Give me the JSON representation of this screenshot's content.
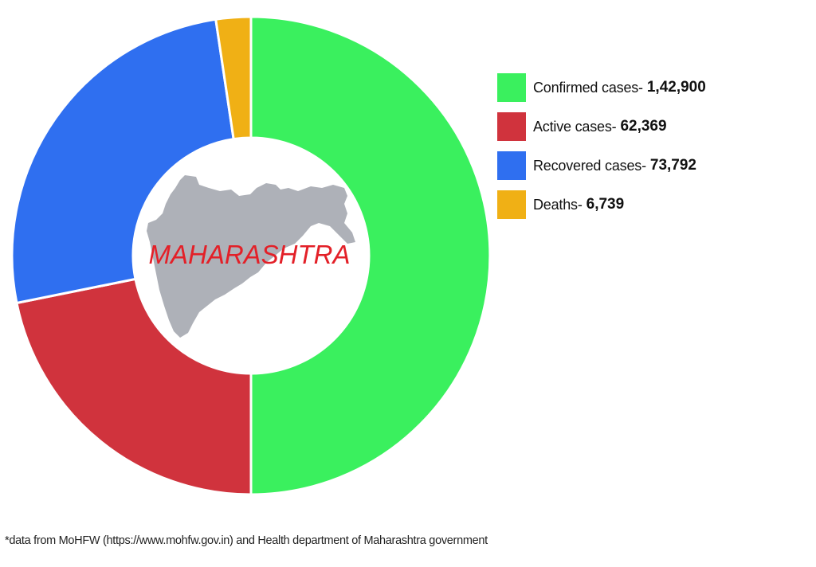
{
  "chart_data": {
    "type": "pie",
    "subtype": "donut",
    "title": "",
    "center_label": "MAHARASHTRA",
    "categories": [
      "Confirmed cases",
      "Active cases",
      "Recovered cases",
      "Deaths"
    ],
    "values": [
      142900,
      62369,
      73792,
      6739
    ],
    "colors": [
      "#3af05e",
      "#d0333d",
      "#2f6ff0",
      "#f0b015"
    ],
    "start_angle_deg": 0,
    "direction": "clockwise",
    "legend_position": "right"
  },
  "legend": {
    "items": [
      {
        "label": "Confirmed cases-",
        "value": "1,42,900",
        "color": "#3af05e"
      },
      {
        "label": "Active cases-",
        "value": "62,369",
        "color": "#d0333d"
      },
      {
        "label": "Recovered cases-",
        "value": "73,792",
        "color": "#2f6ff0"
      },
      {
        "label": "Deaths-",
        "value": "6,739",
        "color": "#f0b015"
      }
    ]
  },
  "center": {
    "label": "MAHARASHTRA",
    "map_color": "#aeb1b8",
    "label_color": "#e32028"
  },
  "footnote": "*data from MoHFW (https://www.mohfw.gov.in) and Health department of Maharashtra government"
}
